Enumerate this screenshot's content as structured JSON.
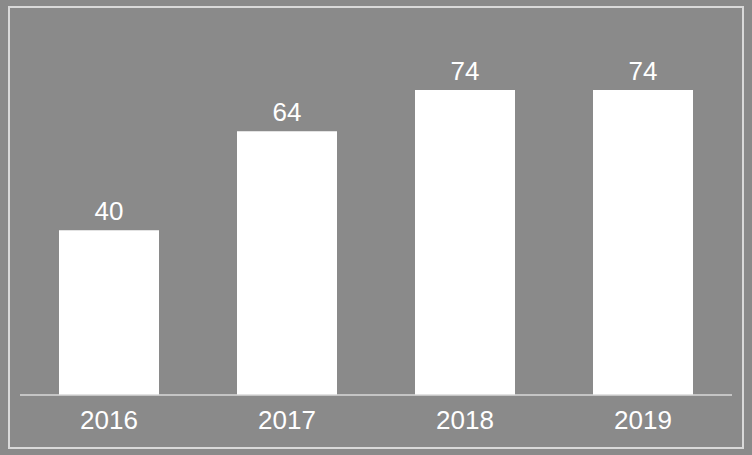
{
  "chart_data": {
    "type": "bar",
    "categories": [
      "2016",
      "2017",
      "2018",
      "2019"
    ],
    "values": [
      40,
      64,
      74,
      74
    ],
    "color": "#ffffff",
    "data_labels": true,
    "tick_labels": "x",
    "grid": false
  }
}
